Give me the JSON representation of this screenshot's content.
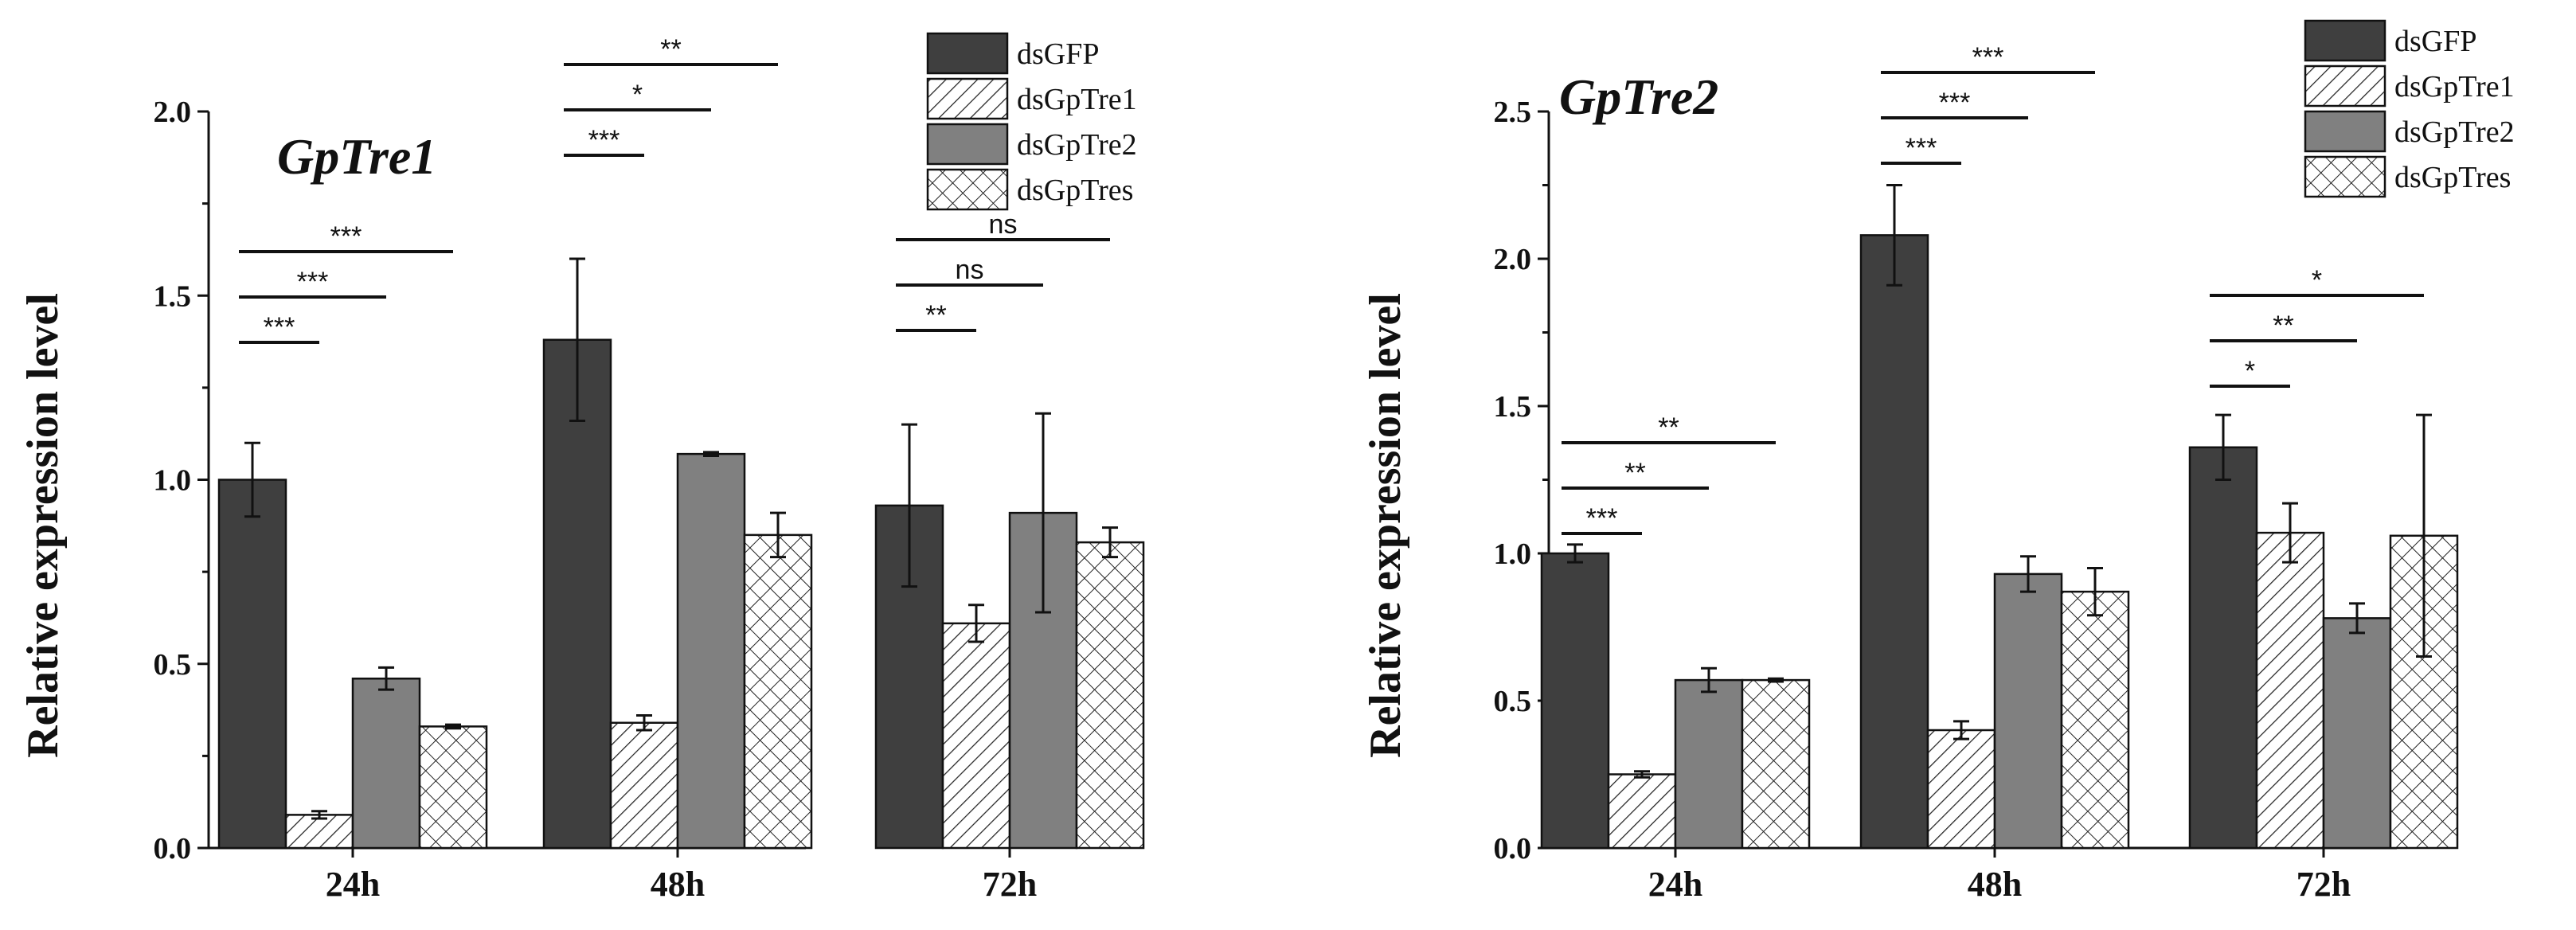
{
  "chart_data": [
    {
      "type": "bar",
      "title": "GpTre1",
      "xlabel": "",
      "ylabel": "Relative expression level",
      "ylim": [
        0,
        2.0
      ],
      "yticks": [
        "0.0",
        "0.5",
        "1.0",
        "1.5",
        "2.0"
      ],
      "categories": [
        "24h",
        "48h",
        "72h"
      ],
      "series": [
        {
          "name": "dsGFP",
          "values": [
            1.0,
            1.38,
            0.93
          ],
          "errors": [
            0.1,
            0.22,
            0.22
          ]
        },
        {
          "name": "dsGpTre1",
          "values": [
            0.09,
            0.34,
            0.61
          ],
          "errors": [
            0.01,
            0.02,
            0.05
          ]
        },
        {
          "name": "dsGpTre2",
          "values": [
            0.46,
            1.07,
            0.91
          ],
          "errors": [
            0.03,
            0.005,
            0.27
          ]
        },
        {
          "name": "dsGpTres",
          "values": [
            0.33,
            0.85,
            0.83
          ],
          "errors": [
            0.005,
            0.06,
            0.04
          ]
        }
      ],
      "significance": [
        {
          "group": 0,
          "to": 1,
          "label": "***"
        },
        {
          "group": 0,
          "to": 2,
          "label": "***"
        },
        {
          "group": 0,
          "to": 3,
          "label": "***"
        },
        {
          "group": 1,
          "to": 1,
          "label": "***"
        },
        {
          "group": 1,
          "to": 2,
          "label": "*"
        },
        {
          "group": 1,
          "to": 3,
          "label": "**"
        },
        {
          "group": 2,
          "to": 1,
          "label": "**"
        },
        {
          "group": 2,
          "to": 2,
          "label": "ns"
        },
        {
          "group": 2,
          "to": 3,
          "label": "ns"
        }
      ],
      "legend_position": "top-right"
    },
    {
      "type": "bar",
      "title": "GpTre2",
      "xlabel": "",
      "ylabel": "Relative expression level",
      "ylim": [
        0,
        2.5
      ],
      "yticks": [
        "0.0",
        "0.5",
        "1.0",
        "1.5",
        "2.0",
        "2.5"
      ],
      "categories": [
        "24h",
        "48h",
        "72h"
      ],
      "series": [
        {
          "name": "dsGFP",
          "values": [
            1.0,
            2.08,
            1.36
          ],
          "errors": [
            0.03,
            0.17,
            0.11
          ]
        },
        {
          "name": "dsGpTre1",
          "values": [
            0.25,
            0.4,
            1.07
          ],
          "errors": [
            0.01,
            0.03,
            0.1
          ]
        },
        {
          "name": "dsGpTre2",
          "values": [
            0.57,
            0.93,
            0.78
          ],
          "errors": [
            0.04,
            0.06,
            0.05
          ]
        },
        {
          "name": "dsGpTres",
          "values": [
            0.57,
            0.87,
            1.06
          ],
          "errors": [
            0.005,
            0.08,
            0.41
          ]
        }
      ],
      "significance": [
        {
          "group": 0,
          "to": 1,
          "label": "***"
        },
        {
          "group": 0,
          "to": 2,
          "label": "**"
        },
        {
          "group": 0,
          "to": 3,
          "label": "**"
        },
        {
          "group": 1,
          "to": 1,
          "label": "***"
        },
        {
          "group": 1,
          "to": 2,
          "label": "***"
        },
        {
          "group": 1,
          "to": 3,
          "label": "***"
        },
        {
          "group": 2,
          "to": 1,
          "label": "*"
        },
        {
          "group": 2,
          "to": 2,
          "label": "**"
        },
        {
          "group": 2,
          "to": 3,
          "label": "*"
        }
      ],
      "legend_position": "top-right"
    }
  ],
  "colors": {
    "dsGFP": "#3f3f3f",
    "dsGpTre1": "#ffffff",
    "dsGpTre2": "#808080",
    "dsGpTres": "#ffffff",
    "ink": "#111111"
  }
}
